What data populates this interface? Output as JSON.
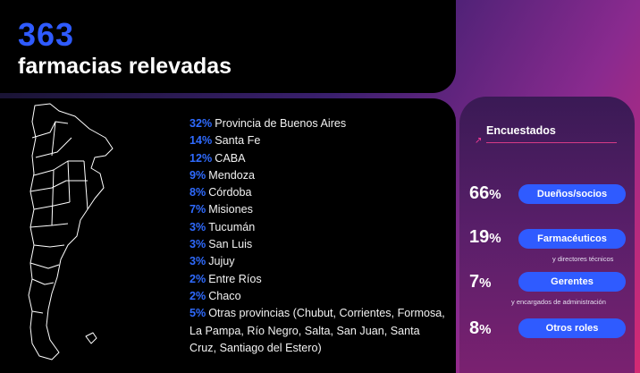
{
  "header": {
    "number": "363",
    "label": "farmacias relevadas"
  },
  "provinces": [
    {
      "pct": "32%",
      "name": "Provincia de Buenos Aires"
    },
    {
      "pct": "14%",
      "name": "Santa Fe"
    },
    {
      "pct": "12%",
      "name": "CABA"
    },
    {
      "pct": "9%",
      "name": "Mendoza"
    },
    {
      "pct": "8%",
      "name": "Córdoba"
    },
    {
      "pct": "7%",
      "name": "Misiones"
    },
    {
      "pct": "3%",
      "name": "Tucumán"
    },
    {
      "pct": "3%",
      "name": "San Luis"
    },
    {
      "pct": "3%",
      "name": "Jujuy"
    },
    {
      "pct": "2%",
      "name": "Entre Ríos"
    },
    {
      "pct": "2%",
      "name": "Chaco"
    },
    {
      "pct": "5%",
      "name": "Otras provincias (Chubut, Corrientes, Formosa, La Pampa, Río Negro, Salta, San Juan, Santa Cruz, Santiago del Estero)"
    }
  ],
  "respondents": {
    "title": "Encuestados",
    "items": [
      {
        "value": "66",
        "unit": "%",
        "role": "Dueños/socios",
        "note": ""
      },
      {
        "value": "19",
        "unit": "%",
        "role": "Farmacéuticos",
        "note": "y directores técnicos"
      },
      {
        "value": "7",
        "unit": "%",
        "role": "Gerentes",
        "note": "y encargados de administración"
      },
      {
        "value": "8",
        "unit": "%",
        "role": "Otros roles",
        "note": ""
      }
    ]
  },
  "colors": {
    "accent_blue": "#2f5bff",
    "accent_pink": "#d63a86",
    "panel": "#000000"
  },
  "icons": {
    "map": "argentina-map-outline",
    "arrow": "arrow-up-right-icon"
  }
}
